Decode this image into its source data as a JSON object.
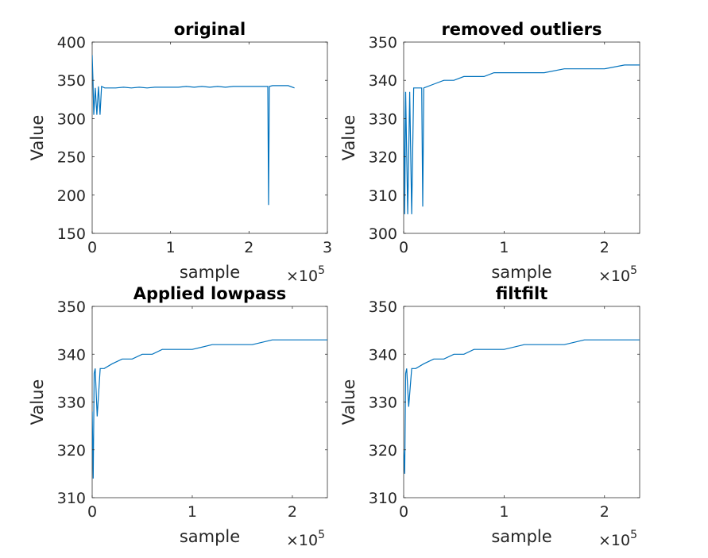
{
  "chart_data": [
    {
      "type": "line",
      "title": "original",
      "xlabel": "sample",
      "ylabel": "Value",
      "xlim": [
        0,
        300000
      ],
      "ylim": [
        150,
        400
      ],
      "xticks": [
        0,
        100000,
        200000,
        300000
      ],
      "xtick_labels": [
        "0",
        "1",
        "2",
        "3"
      ],
      "yticks": [
        150,
        200,
        250,
        300,
        350,
        400
      ],
      "ytick_labels": [
        "150",
        "200",
        "250",
        "300",
        "350",
        "400"
      ],
      "x_exponent": {
        "base": "×10",
        "power": "5"
      },
      "grid": false,
      "color": "#0072bd",
      "series": [
        {
          "x": [
            0,
            1000,
            2000,
            4000,
            6000,
            8000,
            10000,
            12000,
            16000,
            20000,
            25000,
            30000,
            40000,
            50000,
            60000,
            70000,
            80000,
            90000,
            100000,
            110000,
            120000,
            130000,
            140000,
            150000,
            160000,
            170000,
            180000,
            190000,
            200000,
            210000,
            220000,
            224000,
            225000,
            226000,
            230000,
            240000,
            250000,
            258000
          ],
          "y": [
            383,
            350,
            305,
            340,
            305,
            342,
            305,
            342,
            340,
            340,
            340,
            340,
            341,
            340,
            341,
            340,
            341,
            341,
            341,
            341,
            342,
            341,
            342,
            341,
            342,
            341,
            342,
            342,
            342,
            342,
            342,
            342,
            187,
            342,
            343,
            343,
            343,
            340
          ]
        }
      ]
    },
    {
      "type": "line",
      "title": "removed outliers",
      "xlabel": "sample",
      "ylabel": "Value",
      "xlim": [
        0,
        235000
      ],
      "ylim": [
        300,
        350
      ],
      "xticks": [
        0,
        100000,
        200000
      ],
      "xtick_labels": [
        "0",
        "1",
        "2"
      ],
      "yticks": [
        300,
        310,
        320,
        330,
        340,
        350
      ],
      "ytick_labels": [
        "300",
        "310",
        "320",
        "330",
        "340",
        "350"
      ],
      "x_exponent": {
        "base": "×10",
        "power": "5"
      },
      "grid": false,
      "color": "#0072bd",
      "series": [
        {
          "x": [
            0,
            1000,
            2000,
            4000,
            6000,
            8000,
            10000,
            12000,
            15000,
            18000,
            19000,
            20000,
            30000,
            40000,
            50000,
            60000,
            70000,
            80000,
            90000,
            100000,
            120000,
            140000,
            160000,
            180000,
            200000,
            220000,
            235000
          ],
          "y": [
            337,
            305,
            337,
            305,
            337,
            305,
            338,
            338,
            338,
            338,
            307,
            338,
            339,
            340,
            340,
            341,
            341,
            341,
            342,
            342,
            342,
            342,
            343,
            343,
            343,
            344,
            344
          ]
        }
      ]
    },
    {
      "type": "line",
      "title": "Applied lowpass",
      "xlabel": "sample",
      "ylabel": "Value",
      "xlim": [
        0,
        235000
      ],
      "ylim": [
        310,
        350
      ],
      "xticks": [
        0,
        100000,
        200000
      ],
      "xtick_labels": [
        "0",
        "1",
        "2"
      ],
      "yticks": [
        310,
        320,
        330,
        340,
        350
      ],
      "ytick_labels": [
        "310",
        "320",
        "330",
        "340",
        "350"
      ],
      "x_exponent": {
        "base": "×10",
        "power": "5"
      },
      "grid": false,
      "color": "#0072bd",
      "series": [
        {
          "x": [
            0,
            1000,
            2000,
            3000,
            5000,
            8000,
            12000,
            20000,
            30000,
            40000,
            50000,
            60000,
            70000,
            80000,
            100000,
            120000,
            140000,
            160000,
            180000,
            200000,
            220000,
            235000
          ],
          "y": [
            328,
            314,
            336,
            337,
            327,
            337,
            337,
            338,
            339,
            339,
            340,
            340,
            341,
            341,
            341,
            342,
            342,
            342,
            343,
            343,
            343,
            343
          ]
        }
      ]
    },
    {
      "type": "line",
      "title": "filtfilt",
      "xlabel": "sample",
      "ylabel": "Value",
      "xlim": [
        0,
        235000
      ],
      "ylim": [
        310,
        350
      ],
      "xticks": [
        0,
        100000,
        200000
      ],
      "xtick_labels": [
        "0",
        "1",
        "2"
      ],
      "yticks": [
        310,
        320,
        330,
        340,
        350
      ],
      "ytick_labels": [
        "310",
        "320",
        "330",
        "340",
        "350"
      ],
      "x_exponent": {
        "base": "×10",
        "power": "5"
      },
      "grid": false,
      "color": "#0072bd",
      "series": [
        {
          "x": [
            0,
            1000,
            2000,
            3000,
            5000,
            8000,
            12000,
            20000,
            30000,
            40000,
            50000,
            60000,
            70000,
            80000,
            100000,
            120000,
            140000,
            160000,
            180000,
            200000,
            220000,
            235000
          ],
          "y": [
            320,
            315,
            336,
            337,
            329,
            337,
            337,
            338,
            339,
            339,
            340,
            340,
            341,
            341,
            341,
            342,
            342,
            342,
            343,
            343,
            343,
            343
          ]
        }
      ]
    }
  ]
}
